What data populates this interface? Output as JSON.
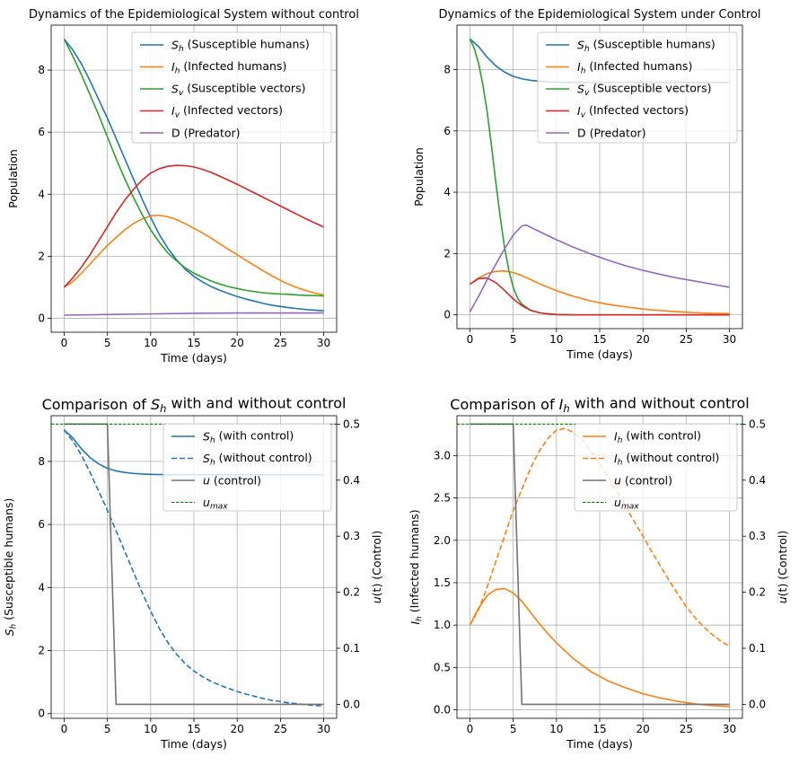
{
  "chart_data": [
    {
      "type": "line",
      "title": "Dynamics of the Epidemiological System without control",
      "xlabel": "Time (days)",
      "ylabel": "Population",
      "xlim": [
        -1.5,
        31.5
      ],
      "ylim": [
        -0.45,
        9.45
      ],
      "xticks": [
        0,
        5,
        10,
        15,
        20,
        25,
        30
      ],
      "yticks": [
        0,
        2,
        4,
        6,
        8
      ],
      "grid": true,
      "legend_position": "top-right",
      "series": [
        {
          "name": "Sh",
          "label_main": "S",
          "label_sub": "h",
          "label_rest": " (Susceptible humans)",
          "color": "#1f77b4",
          "dash": "solid",
          "x": [
            0,
            1,
            2,
            3,
            4,
            5,
            6,
            7,
            8,
            9,
            10,
            11,
            12,
            13,
            14,
            15,
            16,
            17,
            18,
            19,
            20,
            21,
            22,
            23,
            24,
            25,
            26,
            27,
            28,
            29,
            30
          ],
          "y": [
            9.0,
            8.65,
            8.2,
            7.65,
            7.05,
            6.45,
            5.8,
            5.15,
            4.5,
            3.85,
            3.25,
            2.7,
            2.25,
            1.88,
            1.58,
            1.35,
            1.17,
            1.02,
            0.9,
            0.8,
            0.7,
            0.62,
            0.55,
            0.48,
            0.42,
            0.38,
            0.34,
            0.31,
            0.28,
            0.26,
            0.24
          ]
        },
        {
          "name": "Ih",
          "label_main": "I",
          "label_sub": "h",
          "label_rest": " (Infected humans)",
          "color": "#ff7f0e",
          "dash": "solid",
          "x": [
            0,
            1,
            2,
            3,
            4,
            5,
            6,
            7,
            8,
            9,
            10,
            11,
            12,
            13,
            14,
            15,
            16,
            17,
            18,
            19,
            20,
            21,
            22,
            23,
            24,
            25,
            26,
            27,
            28,
            29,
            30
          ],
          "y": [
            1.0,
            1.18,
            1.45,
            1.75,
            2.05,
            2.35,
            2.6,
            2.85,
            3.05,
            3.2,
            3.3,
            3.32,
            3.27,
            3.18,
            3.05,
            2.9,
            2.75,
            2.58,
            2.4,
            2.22,
            2.05,
            1.87,
            1.7,
            1.53,
            1.37,
            1.22,
            1.09,
            0.98,
            0.89,
            0.81,
            0.75
          ]
        },
        {
          "name": "Sv",
          "label_main": "S",
          "label_sub": "v",
          "label_rest": " (Susceptible vectors)",
          "color": "#2ca02c",
          "dash": "solid",
          "x": [
            0,
            1,
            2,
            3,
            4,
            5,
            6,
            7,
            8,
            9,
            10,
            11,
            12,
            13,
            14,
            15,
            16,
            17,
            18,
            19,
            20,
            21,
            22,
            23,
            24,
            25,
            26,
            27,
            28,
            29,
            30
          ],
          "y": [
            9.0,
            8.45,
            7.85,
            7.2,
            6.55,
            5.85,
            5.15,
            4.5,
            3.9,
            3.35,
            2.85,
            2.45,
            2.1,
            1.85,
            1.62,
            1.45,
            1.32,
            1.2,
            1.1,
            1.02,
            0.96,
            0.9,
            0.86,
            0.82,
            0.8,
            0.78,
            0.77,
            0.75,
            0.74,
            0.73,
            0.72
          ]
        },
        {
          "name": "Iv",
          "label_main": "I",
          "label_sub": "v",
          "label_rest": " (Infected vectors)",
          "color": "#d62728",
          "dash": "solid",
          "x": [
            0,
            1,
            2,
            3,
            4,
            5,
            6,
            7,
            8,
            9,
            10,
            11,
            12,
            13,
            14,
            15,
            16,
            17,
            18,
            19,
            20,
            21,
            22,
            23,
            24,
            25,
            26,
            27,
            28,
            29,
            30
          ],
          "y": [
            1.0,
            1.3,
            1.65,
            2.05,
            2.5,
            2.95,
            3.4,
            3.8,
            4.15,
            4.45,
            4.68,
            4.82,
            4.9,
            4.93,
            4.92,
            4.88,
            4.8,
            4.7,
            4.58,
            4.45,
            4.32,
            4.18,
            4.04,
            3.9,
            3.76,
            3.62,
            3.48,
            3.34,
            3.2,
            3.07,
            2.94
          ]
        },
        {
          "name": "D",
          "label_main": "D (Predator)",
          "label_sub": "",
          "label_rest": "",
          "color": "#9467bd",
          "dash": "solid",
          "x": [
            0,
            5,
            10,
            15,
            20,
            25,
            30
          ],
          "y": [
            0.1,
            0.12,
            0.14,
            0.16,
            0.17,
            0.17,
            0.17
          ]
        }
      ]
    },
    {
      "type": "line",
      "title": "Dynamics of the Epidemiological System under Control",
      "xlabel": "Time (days)",
      "ylabel": "Population",
      "xlim": [
        -1.5,
        31.5
      ],
      "ylim": [
        -0.45,
        9.45
      ],
      "xticks": [
        0,
        5,
        10,
        15,
        20,
        25,
        30
      ],
      "yticks": [
        0,
        2,
        4,
        6,
        8
      ],
      "grid": true,
      "legend_position": "top-right",
      "series": [
        {
          "name": "Sh",
          "label_main": "S",
          "label_sub": "h",
          "label_rest": " (Susceptible humans)",
          "color": "#1f77b4",
          "dash": "solid",
          "x": [
            0,
            1,
            2,
            3,
            4,
            5,
            6,
            7,
            8,
            9,
            10,
            12,
            14,
            16,
            18,
            20,
            25,
            30
          ],
          "y": [
            9.0,
            8.75,
            8.4,
            8.12,
            7.92,
            7.78,
            7.7,
            7.65,
            7.62,
            7.6,
            7.59,
            7.58,
            7.58,
            7.58,
            7.58,
            7.58,
            7.58,
            7.58
          ]
        },
        {
          "name": "Ih",
          "label_main": "I",
          "label_sub": "h",
          "label_rest": " (Infected humans)",
          "color": "#ff7f0e",
          "dash": "solid",
          "x": [
            0,
            1,
            2,
            3,
            4,
            5,
            6,
            7,
            8,
            9,
            10,
            12,
            14,
            16,
            18,
            20,
            22,
            24,
            26,
            28,
            30
          ],
          "y": [
            1.0,
            1.2,
            1.35,
            1.42,
            1.43,
            1.38,
            1.28,
            1.15,
            1.02,
            0.9,
            0.79,
            0.6,
            0.45,
            0.34,
            0.26,
            0.19,
            0.14,
            0.1,
            0.07,
            0.05,
            0.04
          ]
        },
        {
          "name": "Sv",
          "label_main": "S",
          "label_sub": "v",
          "label_rest": " (Susceptible vectors)",
          "color": "#2ca02c",
          "dash": "solid",
          "x": [
            0,
            0.5,
            1,
            1.5,
            2,
            2.5,
            3,
            3.5,
            4,
            4.5,
            5,
            5.5,
            6,
            7,
            8,
            9,
            10,
            12,
            15,
            20,
            30
          ],
          "y": [
            9.0,
            8.7,
            8.2,
            7.5,
            6.6,
            5.5,
            4.3,
            3.2,
            2.2,
            1.45,
            0.9,
            0.55,
            0.35,
            0.15,
            0.07,
            0.03,
            0.01,
            0,
            0,
            0,
            0
          ]
        },
        {
          "name": "Iv",
          "label_main": "I",
          "label_sub": "v",
          "label_rest": " (Infected vectors)",
          "color": "#d62728",
          "dash": "solid",
          "x": [
            0,
            1,
            2,
            3,
            4,
            5,
            6,
            7,
            8,
            9,
            10,
            12,
            15,
            20,
            30
          ],
          "y": [
            1.0,
            1.18,
            1.2,
            1.05,
            0.8,
            0.52,
            0.3,
            0.15,
            0.07,
            0.03,
            0.01,
            0,
            0,
            0,
            0
          ]
        },
        {
          "name": "D",
          "label_main": "D (Predator)",
          "label_sub": "",
          "label_rest": "",
          "color": "#9467bd",
          "dash": "solid",
          "x": [
            0,
            1,
            2,
            3,
            4,
            5,
            6,
            6.5,
            8,
            10,
            12,
            14,
            16,
            18,
            20,
            22,
            24,
            26,
            28,
            30
          ],
          "y": [
            0.1,
            0.6,
            1.15,
            1.65,
            2.15,
            2.6,
            2.9,
            2.93,
            2.72,
            2.45,
            2.2,
            1.98,
            1.78,
            1.6,
            1.45,
            1.32,
            1.2,
            1.1,
            1.0,
            0.9
          ]
        }
      ]
    },
    {
      "type": "line",
      "title_pre": "Comparison of ",
      "title_main": "S",
      "title_sub": "h",
      "title_post": " with and without control",
      "xlabel": "Time (days)",
      "ylabel_main": "S",
      "ylabel_sub": "h",
      "ylabel_rest": " (Susceptible humans)",
      "y2label_pre": "u",
      "y2label_post": "(t) (Control)",
      "xlim": [
        -1.5,
        31.5
      ],
      "ylim": [
        -0.15,
        9.45
      ],
      "y2lim": [
        -0.025,
        0.515
      ],
      "xticks": [
        0,
        5,
        10,
        15,
        20,
        25,
        30
      ],
      "yticks": [
        0,
        2,
        4,
        6,
        8
      ],
      "y2ticks": [
        0.0,
        0.1,
        0.2,
        0.3,
        0.4,
        0.5
      ],
      "grid": true,
      "legend_position": "top-right",
      "series": [
        {
          "name": "Sh (with control)",
          "label_main": "S",
          "label_sub": "h",
          "label_rest": " (with control)",
          "axis": "left",
          "color": "#1f77b4",
          "dash": "solid",
          "x": [
            0,
            1,
            2,
            3,
            4,
            5,
            6,
            7,
            8,
            9,
            10,
            12,
            14,
            16,
            18,
            20,
            25,
            30
          ],
          "y": [
            9.0,
            8.75,
            8.4,
            8.12,
            7.92,
            7.78,
            7.7,
            7.65,
            7.62,
            7.6,
            7.59,
            7.58,
            7.58,
            7.58,
            7.58,
            7.58,
            7.58,
            7.58
          ]
        },
        {
          "name": "Sh (without control)",
          "label_main": "S",
          "label_sub": "h",
          "label_rest": " (without control)",
          "axis": "left",
          "color": "#1f77b4",
          "dash": "dashed",
          "x": [
            0,
            1,
            2,
            3,
            4,
            5,
            6,
            7,
            8,
            9,
            10,
            11,
            12,
            13,
            14,
            15,
            16,
            17,
            18,
            19,
            20,
            21,
            22,
            23,
            24,
            25,
            26,
            27,
            28,
            29,
            30
          ],
          "y": [
            9.0,
            8.65,
            8.2,
            7.65,
            7.05,
            6.45,
            5.8,
            5.15,
            4.5,
            3.85,
            3.25,
            2.7,
            2.25,
            1.88,
            1.58,
            1.35,
            1.17,
            1.02,
            0.9,
            0.8,
            0.7,
            0.62,
            0.55,
            0.48,
            0.42,
            0.38,
            0.34,
            0.31,
            0.28,
            0.26,
            0.24
          ]
        },
        {
          "name": "u (control)",
          "label_main": "u",
          "label_sub": "",
          "label_rest": " (control)",
          "axis": "right",
          "color": "#737373",
          "dash": "solid",
          "x": [
            0,
            5,
            6,
            30
          ],
          "y": [
            0.5,
            0.5,
            0.0,
            0.0
          ]
        },
        {
          "name": "umax",
          "label_main": "u",
          "label_sub": "max",
          "label_rest": "",
          "axis": "right",
          "color": "#008000",
          "dash": "dotted",
          "x": [
            -1.5,
            31.5
          ],
          "y": [
            0.5,
            0.5
          ]
        }
      ]
    },
    {
      "type": "line",
      "title_pre": "Comparison of ",
      "title_main": "I",
      "title_sub": "h",
      "title_post": " with and without control",
      "xlabel": "Time (days)",
      "ylabel_main": "I",
      "ylabel_sub": "h",
      "ylabel_rest": " (Infected humans)",
      "y2label_pre": "u",
      "y2label_post": "(t) (Control)",
      "xlim": [
        -1.5,
        31.5
      ],
      "ylim": [
        -0.1,
        3.47
      ],
      "y2lim": [
        -0.025,
        0.515
      ],
      "xticks": [
        0,
        5,
        10,
        15,
        20,
        25,
        30
      ],
      "yticks": [
        0.0,
        0.5,
        1.0,
        1.5,
        2.0,
        2.5,
        3.0
      ],
      "y2ticks": [
        0.0,
        0.1,
        0.2,
        0.3,
        0.4,
        0.5
      ],
      "grid": true,
      "legend_position": "top-right",
      "series": [
        {
          "name": "Ih (with control)",
          "label_main": "I",
          "label_sub": "h",
          "label_rest": " (with control)",
          "axis": "left",
          "color": "#ff7f0e",
          "dash": "solid",
          "x": [
            0,
            1,
            2,
            3,
            4,
            5,
            6,
            7,
            8,
            9,
            10,
            12,
            14,
            16,
            18,
            20,
            22,
            24,
            26,
            28,
            30
          ],
          "y": [
            1.0,
            1.2,
            1.35,
            1.42,
            1.43,
            1.38,
            1.28,
            1.15,
            1.02,
            0.9,
            0.79,
            0.6,
            0.45,
            0.34,
            0.26,
            0.19,
            0.14,
            0.1,
            0.07,
            0.05,
            0.04
          ]
        },
        {
          "name": "Ih (without control)",
          "label_main": "I",
          "label_sub": "h",
          "label_rest": " (without control)",
          "axis": "left",
          "color": "#ff7f0e",
          "dash": "dashed",
          "x": [
            0,
            1,
            2,
            3,
            4,
            5,
            6,
            7,
            8,
            9,
            10,
            11,
            12,
            13,
            14,
            15,
            16,
            17,
            18,
            19,
            20,
            21,
            22,
            23,
            24,
            25,
            26,
            27,
            28,
            29,
            30
          ],
          "y": [
            1.0,
            1.18,
            1.45,
            1.75,
            2.05,
            2.35,
            2.6,
            2.85,
            3.05,
            3.2,
            3.3,
            3.32,
            3.27,
            3.18,
            3.05,
            2.9,
            2.75,
            2.58,
            2.4,
            2.22,
            2.05,
            1.87,
            1.7,
            1.53,
            1.37,
            1.22,
            1.09,
            0.98,
            0.89,
            0.81,
            0.75
          ]
        },
        {
          "name": "u (control)",
          "label_main": "u",
          "label_sub": "",
          "label_rest": " (control)",
          "axis": "right",
          "color": "#737373",
          "dash": "solid",
          "x": [
            0,
            5,
            6,
            30
          ],
          "y": [
            0.5,
            0.5,
            0.0,
            0.0
          ]
        },
        {
          "name": "umax",
          "label_main": "u",
          "label_sub": "max",
          "label_rest": "",
          "axis": "right",
          "color": "#008000",
          "dash": "dotted",
          "x": [
            -1.5,
            31.5
          ],
          "y": [
            0.5,
            0.5
          ]
        }
      ]
    }
  ]
}
